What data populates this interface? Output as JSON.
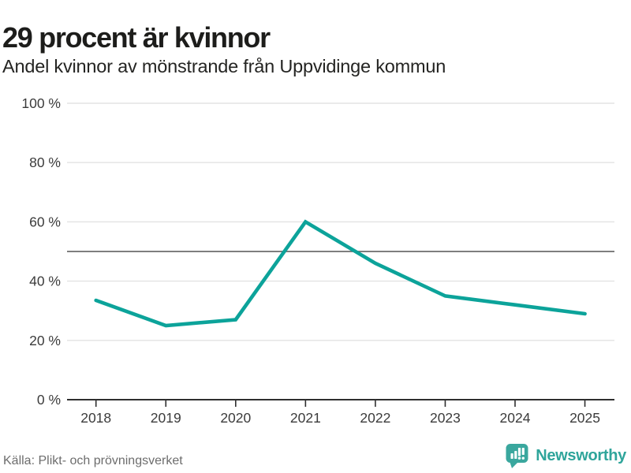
{
  "header": {
    "title": "29 procent är kvinnor",
    "subtitle": "Andel kvinnor av mönstrande från Uppvidinge kommun"
  },
  "chart_data": {
    "type": "line",
    "title": "29 procent är kvinnor",
    "subtitle": "Andel kvinnor av mönstrande från Uppvidinge kommun",
    "x": [
      "2018",
      "2019",
      "2020",
      "2021",
      "2022",
      "2023",
      "2024",
      "2025"
    ],
    "series": [
      {
        "name": "Andel kvinnor av mönstrande",
        "color": "#0ca39a",
        "values": [
          33.5,
          25,
          27,
          60,
          46,
          35,
          32,
          29
        ]
      }
    ],
    "reference_line": {
      "value": 50,
      "color": "#6b6b6b"
    },
    "y_ticks": [
      0,
      20,
      40,
      60,
      80,
      100
    ],
    "y_tick_suffix": " %",
    "ylim": [
      0,
      100
    ],
    "grid": true,
    "legend": "none"
  },
  "footer": {
    "source": "Källa: Plikt- och prövningsverket",
    "brand": "Newsworthy",
    "brand_icon": "bar-chart-speech-bubble-icon"
  },
  "colors": {
    "accent_line": "#0ca39a",
    "brand_teal": "#3aa79e",
    "grid": "#e3e3e3",
    "reference": "#6b6b6b",
    "axis": "#2f2f2f",
    "tick_text": "#3b3b3b",
    "title_text": "#1d1d1b",
    "source_text": "#6d6d6d"
  }
}
